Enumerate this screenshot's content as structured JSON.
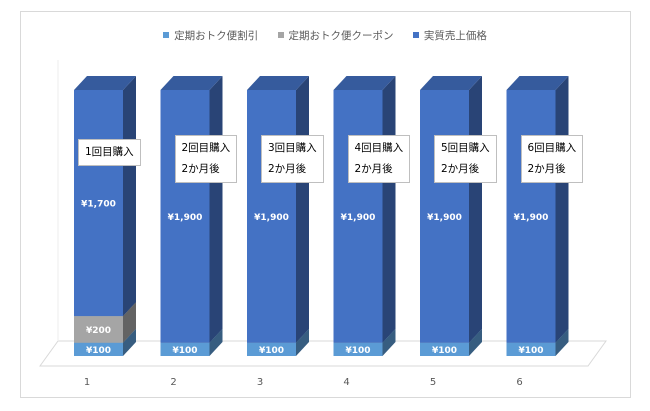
{
  "chart_data": {
    "type": "bar",
    "stacked": true,
    "three_d": true,
    "categories": [
      "1",
      "2",
      "3",
      "4",
      "5",
      "6"
    ],
    "series": [
      {
        "name": "定期おトク便割引",
        "values": [
          100,
          100,
          100,
          100,
          100,
          100
        ],
        "labels": [
          "¥100",
          "¥100",
          "¥100",
          "¥100",
          "¥100",
          "¥100"
        ]
      },
      {
        "name": "定期おトク便クーポン",
        "values": [
          200,
          0,
          0,
          0,
          0,
          0
        ],
        "labels": [
          "¥200",
          "",
          "",
          "",
          "",
          ""
        ]
      },
      {
        "name": "実質売上価格",
        "values": [
          1700,
          1900,
          1900,
          1900,
          1900,
          1900
        ],
        "labels": [
          "¥1,700",
          "¥1,900",
          "¥1,900",
          "¥1,900",
          "¥1,900",
          "¥1,900"
        ]
      }
    ],
    "colors": [
      "#5b9bd5",
      "#a5a5a5",
      "#4472c4"
    ],
    "legend_position": "top",
    "gridlines": false,
    "annotations": [
      {
        "category": "1",
        "lines": [
          "1回目購入"
        ]
      },
      {
        "category": "2",
        "lines": [
          "2回目購入",
          "2か月後"
        ]
      },
      {
        "category": "3",
        "lines": [
          "3回目購入",
          "2か月後"
        ]
      },
      {
        "category": "4",
        "lines": [
          "4回目購入",
          "2か月後"
        ]
      },
      {
        "category": "5",
        "lines": [
          "5回目購入",
          "2か月後"
        ]
      },
      {
        "category": "6",
        "lines": [
          "6回目購入",
          "2か月後"
        ]
      }
    ]
  }
}
